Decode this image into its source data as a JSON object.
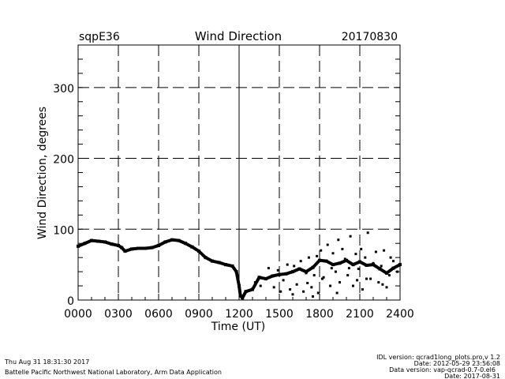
{
  "chart_data": {
    "type": "scatter",
    "title": "Wind Direction",
    "site": "sqpE36",
    "date": "20170830",
    "xlabel": "Time (UT)",
    "ylabel": "Wind Direction, degrees",
    "xlim": [
      0,
      24
    ],
    "ylim": [
      0,
      360
    ],
    "xticks": [
      0,
      3,
      6,
      9,
      12,
      15,
      18,
      21,
      24
    ],
    "xtick_labels": [
      "0000",
      "0300",
      "0600",
      "0900",
      "1200",
      "1500",
      "1800",
      "2100",
      "2400"
    ],
    "yticks": [
      0,
      100,
      200,
      300
    ],
    "ytick_labels": [
      "0",
      "100",
      "200",
      "300"
    ],
    "grid": true,
    "trace": {
      "x": [
        0,
        0.5,
        1,
        1.5,
        2,
        2.5,
        3,
        3.25,
        3.5,
        4,
        4.5,
        5,
        5.5,
        6,
        6.5,
        7,
        7.5,
        8,
        8.5,
        9,
        9.5,
        10,
        10.5,
        11,
        11.5,
        11.8,
        12,
        12.1,
        12.25,
        12.5,
        13,
        13.5,
        14,
        14.5,
        15,
        15.5,
        16,
        16.5,
        17,
        17.5,
        18,
        18.5,
        19,
        19.5,
        20,
        20.5,
        21,
        21.5,
        22,
        22.5,
        23,
        23.5,
        24
      ],
      "y": [
        76,
        80,
        84,
        83,
        82,
        79,
        77,
        74,
        69,
        72,
        73,
        73,
        74,
        77,
        82,
        85,
        84,
        80,
        75,
        69,
        60,
        55,
        53,
        50,
        48,
        40,
        20,
        6,
        3,
        12,
        15,
        32,
        30,
        34,
        36,
        37,
        40,
        44,
        40,
        46,
        56,
        55,
        50,
        52,
        56,
        50,
        54,
        49,
        50,
        44,
        38,
        45,
        50
      ]
    },
    "scatter": {
      "x": [
        13.2,
        13.6,
        14.2,
        14.6,
        14.9,
        15.3,
        15.6,
        15.8,
        16.1,
        16.3,
        16.6,
        16.8,
        17.0,
        17.2,
        17.4,
        17.6,
        17.8,
        17.9,
        18.1,
        18.2,
        18.4,
        18.6,
        18.8,
        19.0,
        19.2,
        19.4,
        19.5,
        19.7,
        19.9,
        20.1,
        20.3,
        20.5,
        20.7,
        20.9,
        21.1,
        21.2,
        21.4,
        21.6,
        21.8,
        22.0,
        22.2,
        22.4,
        22.6,
        22.8,
        23.0,
        23.2,
        23.5,
        23.8,
        15.1,
        16.0,
        17.1,
        18.3,
        19.3,
        20.2,
        21.5,
        22.7,
        23.3,
        17.5,
        18.9,
        20.8
      ],
      "y": [
        25,
        20,
        45,
        18,
        42,
        28,
        50,
        15,
        48,
        22,
        55,
        12,
        38,
        60,
        18,
        35,
        62,
        10,
        70,
        30,
        55,
        78,
        20,
        66,
        40,
        85,
        25,
        72,
        58,
        35,
        90,
        20,
        65,
        44,
        72,
        15,
        60,
        95,
        30,
        52,
        68,
        25,
        48,
        70,
        18,
        35,
        55,
        40,
        12,
        8,
        24,
        32,
        10,
        45,
        30,
        22,
        60,
        5,
        45,
        28
      ]
    }
  },
  "footer": {
    "timestamp": "Thu Aug 31 18:31:30 2017",
    "organization": "Battelle Pacific Northwest National Laboratory, Arm Data Application",
    "idl_version": "IDL version: qcrad1long_plots.pro,v 1.2",
    "idl_date": "Date: 2012-05-29 23:56:08",
    "data_version": "Data version: vap-qcrad-0.7-0.el6",
    "data_date": "Date: 2017-08-31"
  }
}
